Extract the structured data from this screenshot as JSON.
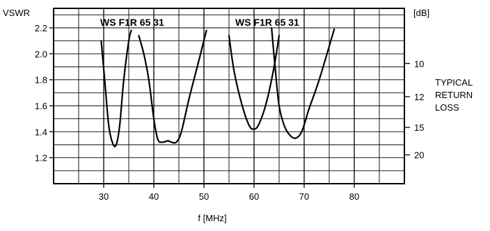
{
  "chart_data": {
    "type": "line",
    "xlabel": "f [MHz]",
    "ylabel": "VSWR",
    "xlim": [
      20,
      90
    ],
    "ylim": [
      1.0,
      2.35
    ],
    "x_ticks": [
      "30",
      "40",
      "50",
      "60",
      "70",
      "80"
    ],
    "y_ticks": [
      "1.2",
      "1.4",
      "1.6",
      "1.8",
      "2.0",
      "2.2"
    ],
    "x_grid_step": 5,
    "y_grid_step": 0.1,
    "grid": true,
    "right_axis": {
      "unit_label": "[dB]",
      "title_lines": [
        "TYPICAL",
        "RETURN",
        "LOSS"
      ],
      "ticks": [
        {
          "label": "10",
          "vswr": 1.925
        },
        {
          "label": "12",
          "vswr": 1.67
        },
        {
          "label": "15",
          "vswr": 1.433
        },
        {
          "label": "20",
          "vswr": 1.222
        }
      ]
    },
    "annotations": [
      "WS F1R 65 31",
      "WS F1R 65 31"
    ],
    "series": [
      {
        "x": [
          29.5,
          30.2,
          31.0,
          31.8,
          32.5,
          33.2,
          34.0,
          35.0,
          35.5
        ],
        "y": [
          2.1,
          1.8,
          1.45,
          1.31,
          1.3,
          1.45,
          1.8,
          2.1,
          2.18
        ]
      },
      {
        "x": [
          37.0,
          38.0,
          39.0,
          40.0,
          40.8,
          41.8,
          42.8,
          43.5,
          44.5,
          45.5,
          47.0,
          49.0,
          50.5
        ],
        "y": [
          2.14,
          2.0,
          1.8,
          1.5,
          1.34,
          1.32,
          1.33,
          1.32,
          1.32,
          1.4,
          1.65,
          1.95,
          2.18
        ]
      },
      {
        "x": [
          55.0,
          56.0,
          57.5,
          59.0,
          60.0,
          61.0,
          62.5,
          64.0,
          65.0
        ],
        "y": [
          2.14,
          1.87,
          1.62,
          1.45,
          1.42,
          1.46,
          1.63,
          1.9,
          2.14
        ]
      },
      {
        "x": [
          63.5,
          64.2,
          65.0,
          66.0,
          67.0,
          68.2,
          69.5,
          71.0,
          73.0,
          76.0
        ],
        "y": [
          2.2,
          1.9,
          1.6,
          1.45,
          1.38,
          1.35,
          1.4,
          1.58,
          1.8,
          2.19
        ]
      }
    ]
  }
}
